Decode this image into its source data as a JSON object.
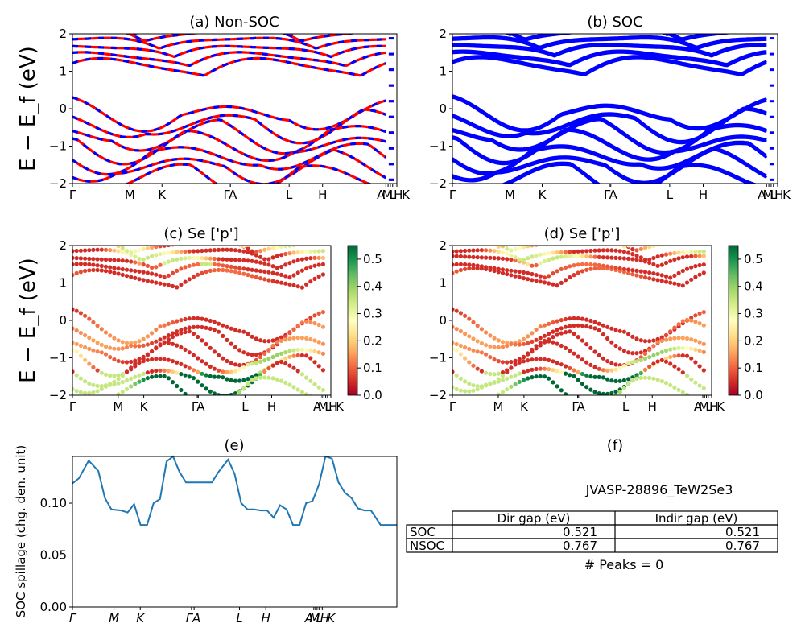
{
  "colors": {
    "red": "#ff0000",
    "blue": "#0000ff",
    "spillage_line": "#1f77b4",
    "table_border": "#000000"
  },
  "chart_data": [
    {
      "id": "a",
      "type": "line",
      "title": "(a) Non-SOC",
      "ylabel": "E − E_f (eV)",
      "ylim": [
        -2,
        2
      ],
      "yticks": [
        "2",
        "1",
        "0",
        "−1",
        "−2"
      ],
      "xticks": [
        "Γ",
        "M",
        "K",
        "Γ",
        "A",
        "L",
        "H",
        "A",
        "M",
        "L",
        "H",
        "K"
      ],
      "series": [
        {
          "color": "#ff0000",
          "style": "solid"
        },
        {
          "color": "#0000ff",
          "style": "dashed"
        }
      ]
    },
    {
      "id": "b",
      "type": "line",
      "title": "(b) SOC",
      "ylim": [
        -2,
        2
      ],
      "yticks": [
        "2",
        "1",
        "0",
        "−1",
        "−2"
      ],
      "xticks": [
        "Γ",
        "M",
        "K",
        "Γ",
        "A",
        "L",
        "H",
        "A",
        "M",
        "L",
        "H",
        "K"
      ],
      "series": [
        {
          "color": "#0000ff",
          "style": "solid"
        }
      ]
    },
    {
      "id": "c",
      "type": "scatter",
      "title": "(c)  Se ['p']",
      "ylabel": "E − E_f (eV)",
      "ylim": [
        -2,
        2
      ],
      "yticks": [
        "2",
        "1",
        "0",
        "−1",
        "−2"
      ],
      "xticks": [
        "Γ",
        "M",
        "K",
        "Γ",
        "A",
        "L",
        "H",
        "A",
        "M",
        "L",
        "H",
        "K"
      ],
      "colorbar": {
        "cmap": "RdYlGn",
        "range": [
          0.0,
          0.55
        ],
        "ticks": [
          "0.5",
          "0.4",
          "0.3",
          "0.2",
          "0.1",
          "0.0"
        ]
      }
    },
    {
      "id": "d",
      "type": "scatter",
      "title": "(d) Se ['p']",
      "ylim": [
        -2,
        2
      ],
      "yticks": [
        "2",
        "1",
        "0",
        "−1",
        "−2"
      ],
      "xticks": [
        "Γ",
        "M",
        "K",
        "Γ",
        "A",
        "L",
        "H",
        "A",
        "M",
        "L",
        "H",
        "K"
      ],
      "colorbar": {
        "cmap": "RdYlGn",
        "range": [
          0.0,
          0.53
        ],
        "ticks": [
          "0.5",
          "0.4",
          "0.3",
          "0.2",
          "0.1",
          "0.0"
        ]
      }
    },
    {
      "id": "e",
      "type": "line",
      "title": "(e)",
      "ylabel": "SOC spillage (chg. den. unit)",
      "ylim": [
        0,
        0.145
      ],
      "yticks": [
        "0.10",
        "0.05",
        "0.00"
      ],
      "ytick_values": [
        0.1,
        0.05,
        0.0
      ],
      "xticks": [
        "Γ",
        "M",
        "K",
        "Γ",
        "A",
        "L",
        "H",
        "A",
        "M",
        "L",
        "H",
        "K"
      ],
      "x": [
        0,
        0.02,
        0.05,
        0.08,
        0.1,
        0.12,
        0.15,
        0.17,
        0.19,
        0.21,
        0.23,
        0.25,
        0.27,
        0.29,
        0.31,
        0.33,
        0.35,
        0.37,
        0.39,
        0.41,
        0.43,
        0.45,
        0.48,
        0.5,
        0.52,
        0.54,
        0.56,
        0.58,
        0.6,
        0.62,
        0.64,
        0.66,
        0.68,
        0.7,
        0.72,
        0.74,
        0.76,
        0.78,
        0.8,
        0.82,
        0.84,
        0.86,
        0.88,
        0.9,
        0.92,
        0.95,
        0.97,
        1.0
      ],
      "y": [
        0.119,
        0.124,
        0.141,
        0.131,
        0.105,
        0.094,
        0.093,
        0.091,
        0.099,
        0.079,
        0.079,
        0.1,
        0.104,
        0.14,
        0.145,
        0.13,
        0.12,
        0.12,
        0.12,
        0.12,
        0.12,
        0.13,
        0.142,
        0.128,
        0.1,
        0.094,
        0.094,
        0.093,
        0.093,
        0.086,
        0.098,
        0.094,
        0.079,
        0.079,
        0.1,
        0.102,
        0.118,
        0.145,
        0.143,
        0.12,
        0.11,
        0.105,
        0.095,
        0.093,
        0.093,
        0.079,
        0.079,
        0.079
      ],
      "color": "#1f77b4"
    }
  ],
  "panel_f": {
    "title": "(f)",
    "material": "JVASP-28896_TeW2Se3",
    "table": {
      "headers": [
        "Dir gap (eV)",
        "Indir gap (eV)"
      ],
      "rows": [
        {
          "label": "SOC",
          "dir": "0.521",
          "indir": "0.521"
        },
        {
          "label": "NSOC",
          "dir": "0.767",
          "indir": "0.767"
        }
      ]
    },
    "peaks": "# Peaks = 0"
  }
}
